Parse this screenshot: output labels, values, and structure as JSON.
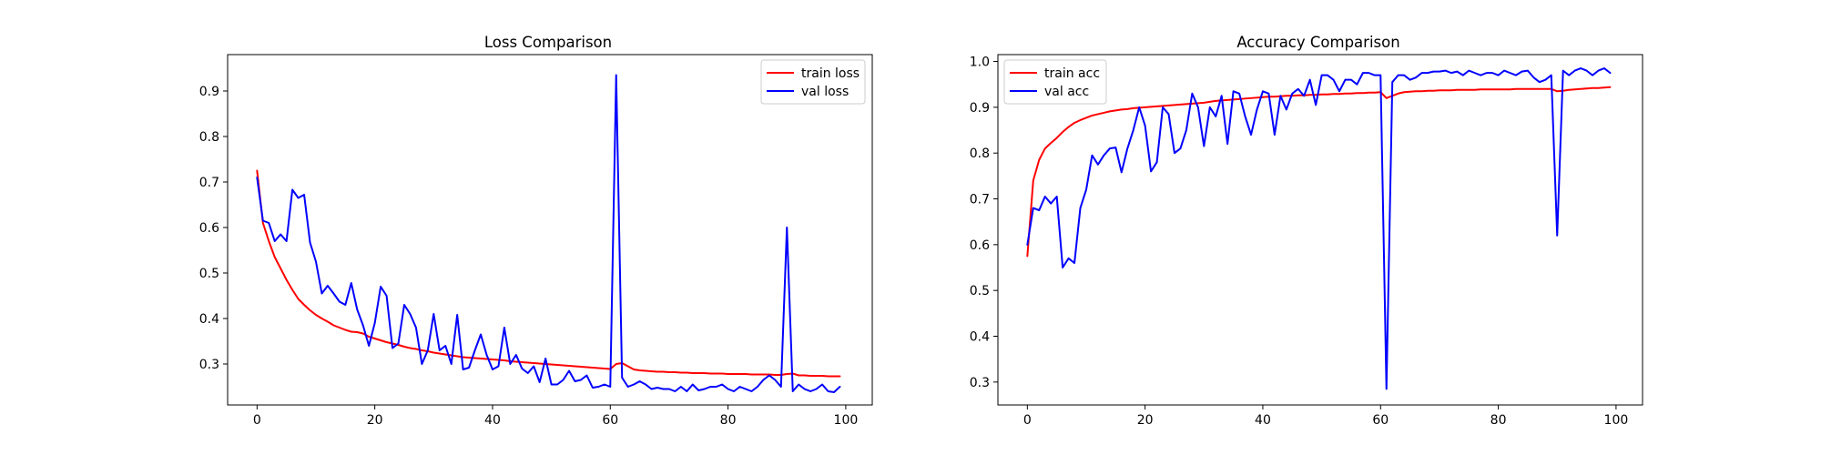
{
  "chart_data": [
    {
      "type": "line",
      "title": "Loss Comparison",
      "xlabel": "",
      "ylabel": "",
      "xlim": [
        -5,
        104.5
      ],
      "ylim": [
        0.21,
        0.98
      ],
      "xticks": [
        0,
        20,
        40,
        60,
        80,
        100
      ],
      "yticks": [
        0.3,
        0.4,
        0.5,
        0.6,
        0.7,
        0.8,
        0.9
      ],
      "grid": false,
      "legend_position": "top-right",
      "series": [
        {
          "name": "train loss",
          "color": "#ff0000",
          "values": [
            0.725,
            0.61,
            0.57,
            0.535,
            0.51,
            0.485,
            0.463,
            0.443,
            0.43,
            0.418,
            0.408,
            0.4,
            0.393,
            0.385,
            0.38,
            0.375,
            0.371,
            0.37,
            0.367,
            0.36,
            0.356,
            0.352,
            0.348,
            0.345,
            0.342,
            0.338,
            0.335,
            0.333,
            0.33,
            0.328,
            0.325,
            0.323,
            0.321,
            0.319,
            0.317,
            0.315,
            0.314,
            0.313,
            0.312,
            0.311,
            0.31,
            0.309,
            0.308,
            0.306,
            0.305,
            0.304,
            0.303,
            0.302,
            0.301,
            0.3,
            0.299,
            0.298,
            0.297,
            0.296,
            0.295,
            0.294,
            0.293,
            0.292,
            0.291,
            0.29,
            0.289,
            0.3,
            0.302,
            0.295,
            0.288,
            0.286,
            0.285,
            0.284,
            0.283,
            0.283,
            0.282,
            0.282,
            0.281,
            0.281,
            0.28,
            0.28,
            0.28,
            0.279,
            0.279,
            0.279,
            0.278,
            0.278,
            0.278,
            0.278,
            0.277,
            0.277,
            0.277,
            0.277,
            0.276,
            0.276,
            0.278,
            0.279,
            0.275,
            0.275,
            0.274,
            0.274,
            0.274,
            0.273,
            0.273,
            0.273
          ]
        },
        {
          "name": "val loss",
          "color": "#0000ff",
          "values": [
            0.71,
            0.615,
            0.61,
            0.57,
            0.585,
            0.57,
            0.683,
            0.665,
            0.672,
            0.567,
            0.525,
            0.455,
            0.472,
            0.455,
            0.437,
            0.43,
            0.478,
            0.42,
            0.385,
            0.34,
            0.39,
            0.47,
            0.45,
            0.335,
            0.345,
            0.43,
            0.41,
            0.38,
            0.3,
            0.33,
            0.41,
            0.33,
            0.34,
            0.3,
            0.408,
            0.288,
            0.292,
            0.33,
            0.365,
            0.32,
            0.288,
            0.295,
            0.38,
            0.3,
            0.32,
            0.29,
            0.28,
            0.295,
            0.26,
            0.312,
            0.255,
            0.255,
            0.265,
            0.285,
            0.262,
            0.265,
            0.275,
            0.248,
            0.25,
            0.255,
            0.25,
            0.935,
            0.27,
            0.25,
            0.255,
            0.262,
            0.255,
            0.245,
            0.248,
            0.245,
            0.245,
            0.24,
            0.25,
            0.24,
            0.255,
            0.242,
            0.245,
            0.25,
            0.25,
            0.255,
            0.245,
            0.24,
            0.25,
            0.245,
            0.24,
            0.25,
            0.265,
            0.275,
            0.265,
            0.25,
            0.6,
            0.24,
            0.255,
            0.245,
            0.24,
            0.245,
            0.255,
            0.24,
            0.238,
            0.25
          ]
        }
      ]
    },
    {
      "type": "line",
      "title": "Accuracy Comparison",
      "xlabel": "",
      "ylabel": "",
      "xlim": [
        -5,
        104.5
      ],
      "ylim": [
        0.25,
        1.015
      ],
      "xticks": [
        0,
        20,
        40,
        60,
        80,
        100
      ],
      "yticks": [
        0.3,
        0.4,
        0.5,
        0.6,
        0.7,
        0.8,
        0.9,
        1.0
      ],
      "ytick_labels": [
        "0.3",
        "0.4",
        "0.5",
        "0.6",
        "0.7",
        "0.8",
        "0.9",
        "1.0"
      ],
      "grid": false,
      "legend_position": "top-left",
      "series": [
        {
          "name": "train acc",
          "color": "#ff0000",
          "values": [
            0.575,
            0.74,
            0.785,
            0.81,
            0.822,
            0.833,
            0.846,
            0.857,
            0.866,
            0.872,
            0.877,
            0.882,
            0.885,
            0.888,
            0.891,
            0.893,
            0.895,
            0.896,
            0.898,
            0.899,
            0.9,
            0.901,
            0.902,
            0.903,
            0.904,
            0.905,
            0.906,
            0.907,
            0.908,
            0.909,
            0.91,
            0.912,
            0.914,
            0.915,
            0.916,
            0.917,
            0.918,
            0.919,
            0.92,
            0.921,
            0.922,
            0.923,
            0.923,
            0.924,
            0.925,
            0.925,
            0.926,
            0.926,
            0.927,
            0.927,
            0.928,
            0.928,
            0.929,
            0.929,
            0.93,
            0.93,
            0.931,
            0.931,
            0.932,
            0.932,
            0.933,
            0.92,
            0.925,
            0.93,
            0.933,
            0.934,
            0.935,
            0.935,
            0.936,
            0.936,
            0.937,
            0.937,
            0.937,
            0.938,
            0.938,
            0.938,
            0.938,
            0.939,
            0.939,
            0.939,
            0.939,
            0.939,
            0.939,
            0.94,
            0.94,
            0.94,
            0.94,
            0.94,
            0.94,
            0.94,
            0.935,
            0.936,
            0.938,
            0.939,
            0.94,
            0.941,
            0.942,
            0.942,
            0.943,
            0.944
          ]
        },
        {
          "name": "val acc",
          "color": "#0000ff",
          "values": [
            0.6,
            0.68,
            0.675,
            0.705,
            0.69,
            0.705,
            0.55,
            0.57,
            0.56,
            0.68,
            0.72,
            0.795,
            0.775,
            0.795,
            0.81,
            0.812,
            0.758,
            0.81,
            0.85,
            0.9,
            0.86,
            0.76,
            0.78,
            0.9,
            0.885,
            0.8,
            0.81,
            0.85,
            0.93,
            0.9,
            0.815,
            0.9,
            0.88,
            0.925,
            0.82,
            0.935,
            0.93,
            0.88,
            0.84,
            0.895,
            0.935,
            0.93,
            0.84,
            0.925,
            0.895,
            0.93,
            0.94,
            0.925,
            0.96,
            0.905,
            0.97,
            0.97,
            0.96,
            0.935,
            0.96,
            0.96,
            0.95,
            0.975,
            0.975,
            0.97,
            0.97,
            0.285,
            0.955,
            0.97,
            0.97,
            0.96,
            0.965,
            0.975,
            0.975,
            0.978,
            0.978,
            0.98,
            0.975,
            0.978,
            0.97,
            0.98,
            0.975,
            0.97,
            0.975,
            0.975,
            0.97,
            0.98,
            0.975,
            0.97,
            0.978,
            0.98,
            0.965,
            0.955,
            0.96,
            0.97,
            0.62,
            0.98,
            0.97,
            0.98,
            0.985,
            0.98,
            0.97,
            0.98,
            0.985,
            0.975
          ]
        }
      ]
    }
  ]
}
